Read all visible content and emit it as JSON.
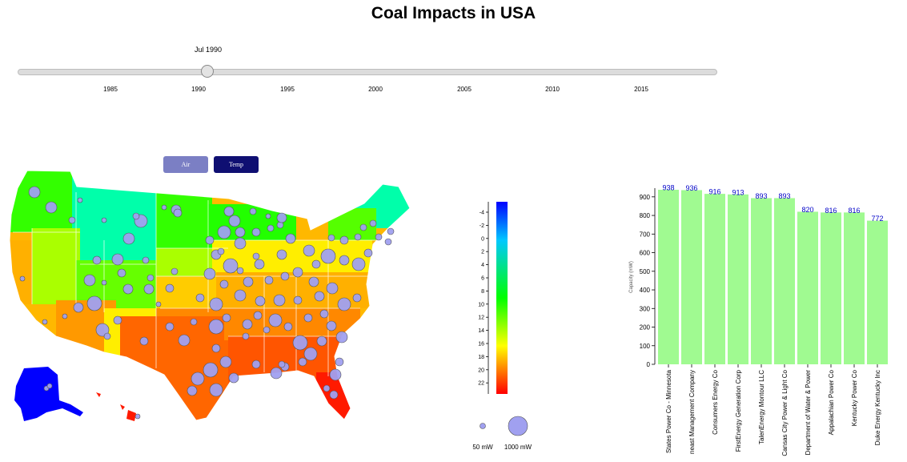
{
  "title": "Coal Impacts in USA",
  "slider": {
    "current_label": "Jul 1990",
    "year_ticks": [
      "1985",
      "1990",
      "1995",
      "2000",
      "2005",
      "2010",
      "2015"
    ]
  },
  "toggle": {
    "air_label": "Air",
    "temp_label": "Temp",
    "active": "Temp"
  },
  "temperature_legend": {
    "ticks": [
      "-4",
      "-2",
      "0",
      "2",
      "4",
      "6",
      "8",
      "10",
      "12",
      "14",
      "16",
      "18",
      "20",
      "22"
    ],
    "colors": [
      "#0000ff",
      "#00c8ff",
      "#00ff00",
      "#ffff00",
      "#ff0000"
    ]
  },
  "size_legend": {
    "small_label": "50 mW",
    "large_label": "1000 mW"
  },
  "chart_data": {
    "type": "bar",
    "ylabel": "Capacity (mW)",
    "ylim": [
      0,
      938
    ],
    "yticks": [
      "0",
      "100",
      "200",
      "300",
      "400",
      "500",
      "600",
      "700",
      "800",
      "900"
    ],
    "bar_color": "#a0fa91",
    "label_color": "#0000c8",
    "categories": [
      "States Power Co - Minnesota",
      "neast Management Company",
      "Consumers Energy Co",
      "FirstEnergy Generation Corp",
      "TalenEnergy Montour LLC",
      "Cansas City Power & Light Co",
      "Department of Water & Power",
      "Appalachian Power Co",
      "Kentucky Power Co",
      "Duke Energy Kentucky Inc"
    ],
    "values": [
      938,
      936,
      916,
      913,
      893,
      893,
      820,
      816,
      816,
      772
    ]
  }
}
